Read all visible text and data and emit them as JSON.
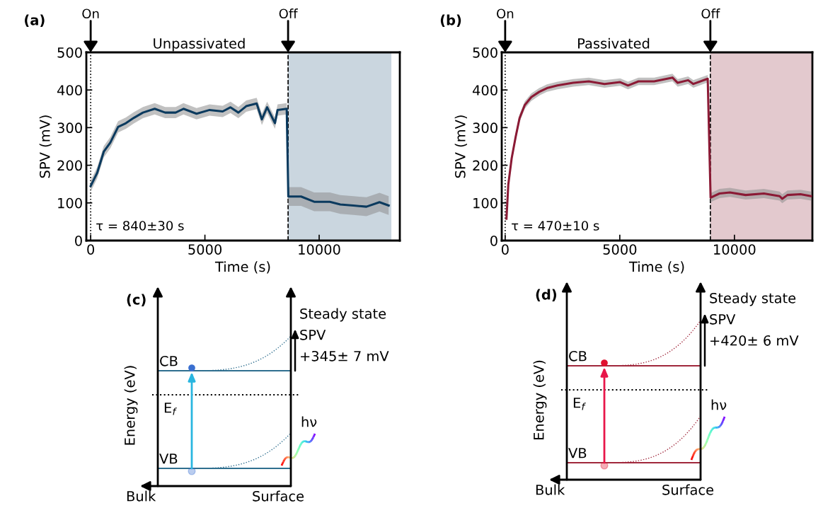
{
  "chart_data": [
    {
      "type": "line",
      "title": "Unpassivated",
      "xlabel": "Time (s)",
      "ylabel": "SPV (mV)",
      "x": [
        0,
        286,
        572,
        858,
        1201,
        1544,
        1888,
        2288,
        2803,
        3260,
        3718,
        4061,
        4633,
        5205,
        5777,
        6120,
        6464,
        6807,
        7264,
        7493,
        7722,
        8065,
        8180,
        8580,
        8650,
        9209,
        9781,
        10468,
        10925,
        11497,
        12069,
        12641,
        13042
      ],
      "series": [
        {
          "color": "#0b3a5e",
          "values": [
            145,
            180,
            236,
            260,
            302,
            312,
            326,
            340,
            350,
            340,
            340,
            350,
            337,
            347,
            343,
            354,
            340,
            357,
            364,
            322,
            354,
            312,
            347,
            350,
            117,
            117,
            103,
            103,
            96,
            93,
            90,
            102,
            93
          ],
          "lower": [
            130,
            165,
            221,
            245,
            287,
            297,
            311,
            325,
            335,
            325,
            325,
            335,
            322,
            332,
            328,
            339,
            325,
            342,
            349,
            307,
            339,
            297,
            332,
            335,
            92,
            92,
            78,
            78,
            71,
            68,
            65,
            77,
            68
          ],
          "upper": [
            160,
            195,
            251,
            275,
            317,
            327,
            341,
            355,
            365,
            355,
            355,
            365,
            352,
            362,
            358,
            369,
            355,
            372,
            379,
            337,
            369,
            327,
            362,
            365,
            142,
            142,
            128,
            128,
            121,
            118,
            115,
            127,
            118
          ]
        }
      ],
      "xlim": [
        -190,
        13530
      ],
      "ylim": [
        0,
        500
      ],
      "xticks": [
        0,
        5000,
        10000
      ],
      "yticks": [
        0,
        100,
        200,
        300,
        400,
        500
      ],
      "ref_lines": [
        {
          "axis": "x",
          "value": 0,
          "line_style": "dotted",
          "color": "#000000"
        },
        {
          "axis": "x",
          "value": 8640,
          "line_style": "dashed",
          "color": "#000000"
        }
      ],
      "bands": [
        {
          "axis": "x",
          "from": 8640,
          "to": 13160,
          "color": "#cad6df"
        }
      ],
      "annotations": [
        "(a)",
        "τ = 840±30 s",
        {
          "text": "On",
          "x": 0,
          "y": 500
        },
        {
          "text": "Off",
          "x": 8640,
          "y": 500
        }
      ],
      "grid": false,
      "marker": "none",
      "line_style": "solid"
    },
    {
      "type": "line",
      "title": "Passivated",
      "xlabel": "Time (s)",
      "ylabel": "SPV (mV)",
      "x": [
        57,
        137,
        285,
        456,
        627,
        855,
        1140,
        1482,
        1824,
        2280,
        2964,
        3648,
        4332,
        5016,
        5358,
        5814,
        6498,
        7296,
        7524,
        7980,
        8208,
        8835,
        8960,
        9348,
        9804,
        10488,
        11286,
        11970,
        12084,
        12312,
        12882,
        13338
      ],
      "series": [
        {
          "color": "#8b1a35",
          "values": [
            58,
            149,
            219,
            275,
            325,
            360,
            381,
            395,
            405,
            412,
            419,
            423,
            416,
            421,
            412,
            423,
            423,
            433,
            419,
            426,
            416,
            430,
            114,
            125,
            128,
            121,
            125,
            118,
            111,
            121,
            123,
            118
          ],
          "lower": [
            48,
            139,
            209,
            265,
            315,
            350,
            371,
            385,
            395,
            402,
            409,
            413,
            406,
            411,
            402,
            413,
            413,
            423,
            409,
            416,
            406,
            420,
            102,
            113,
            116,
            109,
            113,
            106,
            99,
            109,
            111,
            106
          ],
          "upper": [
            68,
            159,
            229,
            285,
            335,
            370,
            391,
            405,
            415,
            422,
            429,
            433,
            426,
            431,
            422,
            433,
            433,
            443,
            429,
            436,
            426,
            440,
            126,
            137,
            140,
            133,
            137,
            130,
            123,
            133,
            135,
            130
          ]
        }
      ],
      "xlim": [
        -150,
        13400
      ],
      "ylim": [
        0,
        500
      ],
      "xticks": [
        0,
        5000,
        10000
      ],
      "yticks": [
        0,
        100,
        200,
        300,
        400,
        500
      ],
      "ref_lines": [
        {
          "axis": "x",
          "value": 0,
          "line_style": "dotted",
          "color": "#000000"
        },
        {
          "axis": "x",
          "value": 8950,
          "line_style": "dashed",
          "color": "#000000"
        }
      ],
      "bands": [
        {
          "axis": "x",
          "from": 8950,
          "to": 13400,
          "color": "#e3c9ce"
        }
      ],
      "annotations": [
        "(b)",
        "τ = 470±10 s",
        {
          "text": "On",
          "x": 0,
          "y": 500
        },
        {
          "text": "Off",
          "x": 8950,
          "y": 500
        }
      ],
      "grid": false,
      "marker": "none",
      "line_style": "solid"
    },
    {
      "type": "other",
      "ylabel": "Energy (eV)",
      "annotations": [
        "(c)",
        "Steady state",
        "SPV",
        "+345± 7 mV",
        "CB",
        "E$_{f}$",
        "VB",
        "hν",
        "Bulk",
        "Surface"
      ]
    },
    {
      "type": "other",
      "ylabel": "Energy (eV)",
      "annotations": [
        "(d)",
        "Steady state",
        "SPV",
        "+420± 6 mV",
        "CB",
        "E$_{f}$",
        "VB",
        "hν",
        "Bulk",
        "Surface"
      ]
    }
  ]
}
